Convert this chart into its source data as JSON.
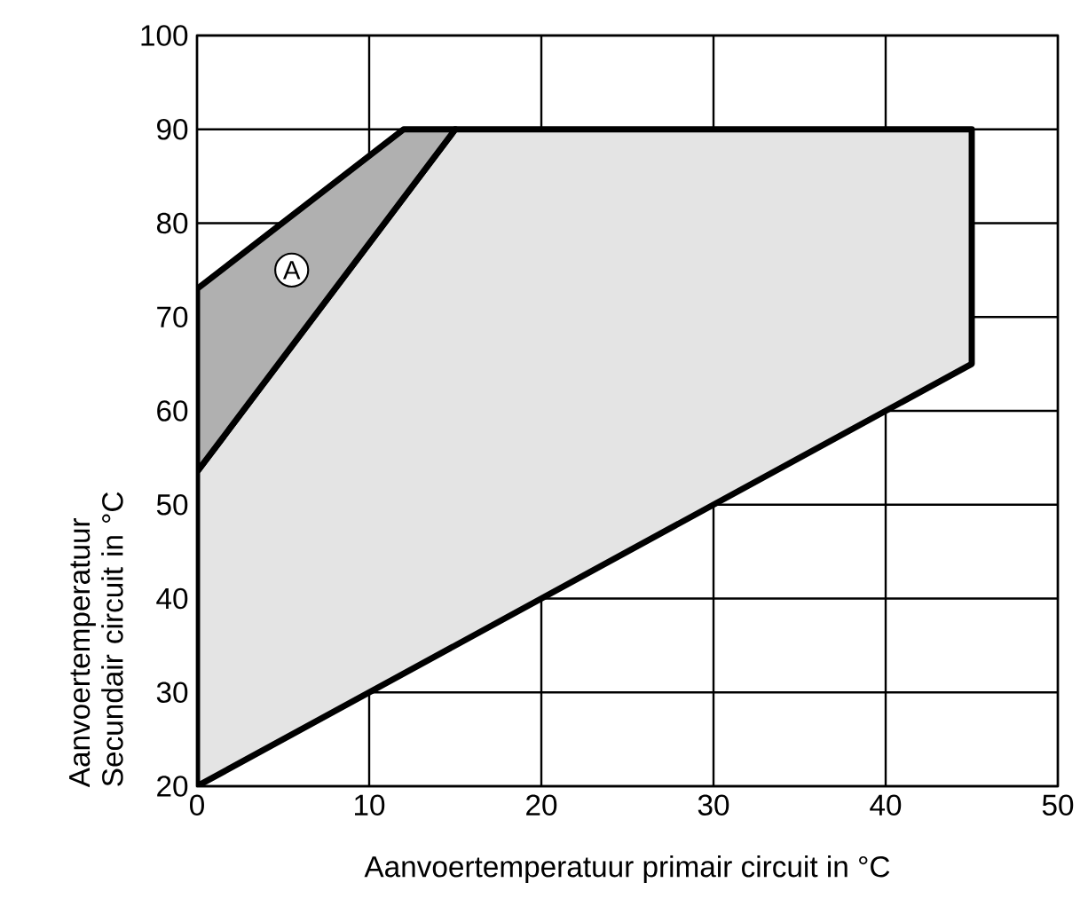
{
  "chart_data": {
    "type": "area",
    "xlabel": "Aanvoertemperatuur primair circuit in °C",
    "ylabel": "Aanvoertemperatuur Secundair circuit in °C",
    "series": [
      {
        "color": "#e4e4e4",
        "x": [
          0,
          0,
          15,
          45,
          45
        ],
        "values": [
          20,
          53.5,
          90,
          90,
          65
        ]
      },
      {
        "color": "#b0b0b0",
        "x": [
          0,
          0,
          12,
          15
        ],
        "values": [
          53.5,
          73,
          90,
          90
        ]
      }
    ],
    "annotations": [
      {
        "text": "A",
        "x": 5.5,
        "y": 75
      }
    ],
    "xlim": [
      0,
      50
    ],
    "ylim": [
      20,
      100
    ],
    "xticks": [
      0,
      10,
      20,
      30,
      40,
      50
    ],
    "yticks": [
      20,
      30,
      40,
      50,
      60,
      70,
      80,
      90,
      100
    ],
    "grid": true
  }
}
